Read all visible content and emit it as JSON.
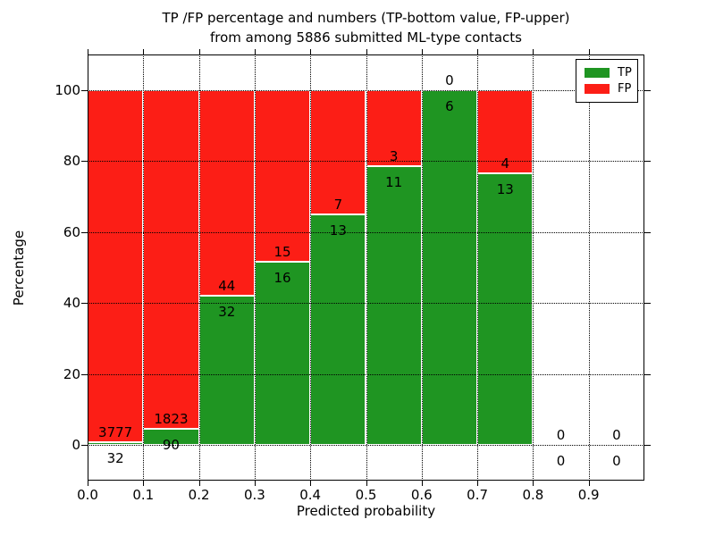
{
  "title": {
    "line1": "TP /FP percentage and numbers (TP-bottom value, FP-upper)",
    "line2": "from among 5886 submitted ML-type contacts"
  },
  "axes": {
    "xlabel": "Predicted probability",
    "ylabel": "Percentage",
    "xtick_labels": [
      "0.0",
      "0.1",
      "0.2",
      "0.3",
      "0.4",
      "0.5",
      "0.6",
      "0.7",
      "0.8",
      "0.9"
    ],
    "ytick_values": [
      0,
      20,
      40,
      60,
      80,
      100
    ],
    "xlim": [
      0.0,
      1.0
    ],
    "ylim": [
      -10,
      110
    ],
    "grid": "dotted"
  },
  "legend": {
    "position": "upper right",
    "items": [
      {
        "label": "TP",
        "color": "#1f9522"
      },
      {
        "label": "FP",
        "color": "#fc1e16"
      }
    ]
  },
  "colors": {
    "tp_green": "#1f9522",
    "fp_red": "#fc1e16",
    "bar_edge": "#ffffff",
    "text": "#000000",
    "background": "#ffffff"
  },
  "chart_data": {
    "type": "bar",
    "stacked": true,
    "normalized_to_percent": true,
    "title": "TP /FP percentage and numbers (TP-bottom value, FP-upper) from among 5886 submitted ML-type contacts",
    "xlabel": "Predicted probability",
    "ylabel": "Percentage",
    "total_submitted": 5886,
    "bin_width": 0.1,
    "bin_starts": [
      0.0,
      0.1,
      0.2,
      0.3,
      0.4,
      0.5,
      0.6,
      0.7,
      0.8,
      0.9
    ],
    "series": [
      {
        "name": "TP",
        "color": "#1f9522",
        "counts": [
          32,
          90,
          32,
          16,
          13,
          11,
          6,
          13,
          0,
          0
        ]
      },
      {
        "name": "FP",
        "color": "#fc1e16",
        "counts": [
          3777,
          1823,
          44,
          15,
          7,
          3,
          0,
          4,
          0,
          0
        ]
      }
    ],
    "tp_percent_of_bin": [
      0.84,
      4.7,
      42.11,
      51.61,
      65.0,
      78.57,
      100.0,
      76.47,
      null,
      null
    ],
    "annotation_rule": "FP count printed just above TP/FP boundary, TP count just below it",
    "xlim": [
      0.0,
      1.0
    ],
    "ylim": [
      -10,
      110
    ],
    "grid": true,
    "legend_position": "upper right"
  }
}
